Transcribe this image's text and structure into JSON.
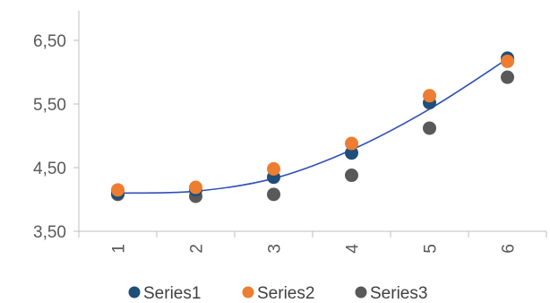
{
  "chart_data": {
    "type": "scatter",
    "title": "",
    "xlabel": "",
    "ylabel": "",
    "x": [
      1,
      2,
      3,
      4,
      5,
      6
    ],
    "x_tick_labels": [
      "1",
      "2",
      "3",
      "4",
      "5",
      "6"
    ],
    "ylim": [
      3.5,
      7.0
    ],
    "y_tick_values": [
      3.5,
      4.5,
      5.5,
      6.5
    ],
    "y_tick_labels": [
      "3,50",
      "4,50",
      "5,50",
      "6,50"
    ],
    "grid": false,
    "legend_position": "bottom",
    "series": [
      {
        "name": "Series1",
        "color": "#1f4e79",
        "values": [
          4.1,
          4.15,
          4.35,
          4.73,
          5.52,
          6.22
        ]
      },
      {
        "name": "Series2",
        "color": "#ed7d31",
        "values": [
          4.15,
          4.19,
          4.48,
          4.88,
          5.63,
          6.17
        ]
      },
      {
        "name": "Series3",
        "color": "#595959",
        "values": [
          4.08,
          4.05,
          4.08,
          4.38,
          5.12,
          5.92
        ]
      }
    ],
    "trendline": {
      "series": "Series1",
      "color": "#2f4fb7",
      "type": "polynomial",
      "values": [
        4.1,
        4.13,
        4.33,
        4.78,
        5.42,
        6.21
      ]
    }
  }
}
